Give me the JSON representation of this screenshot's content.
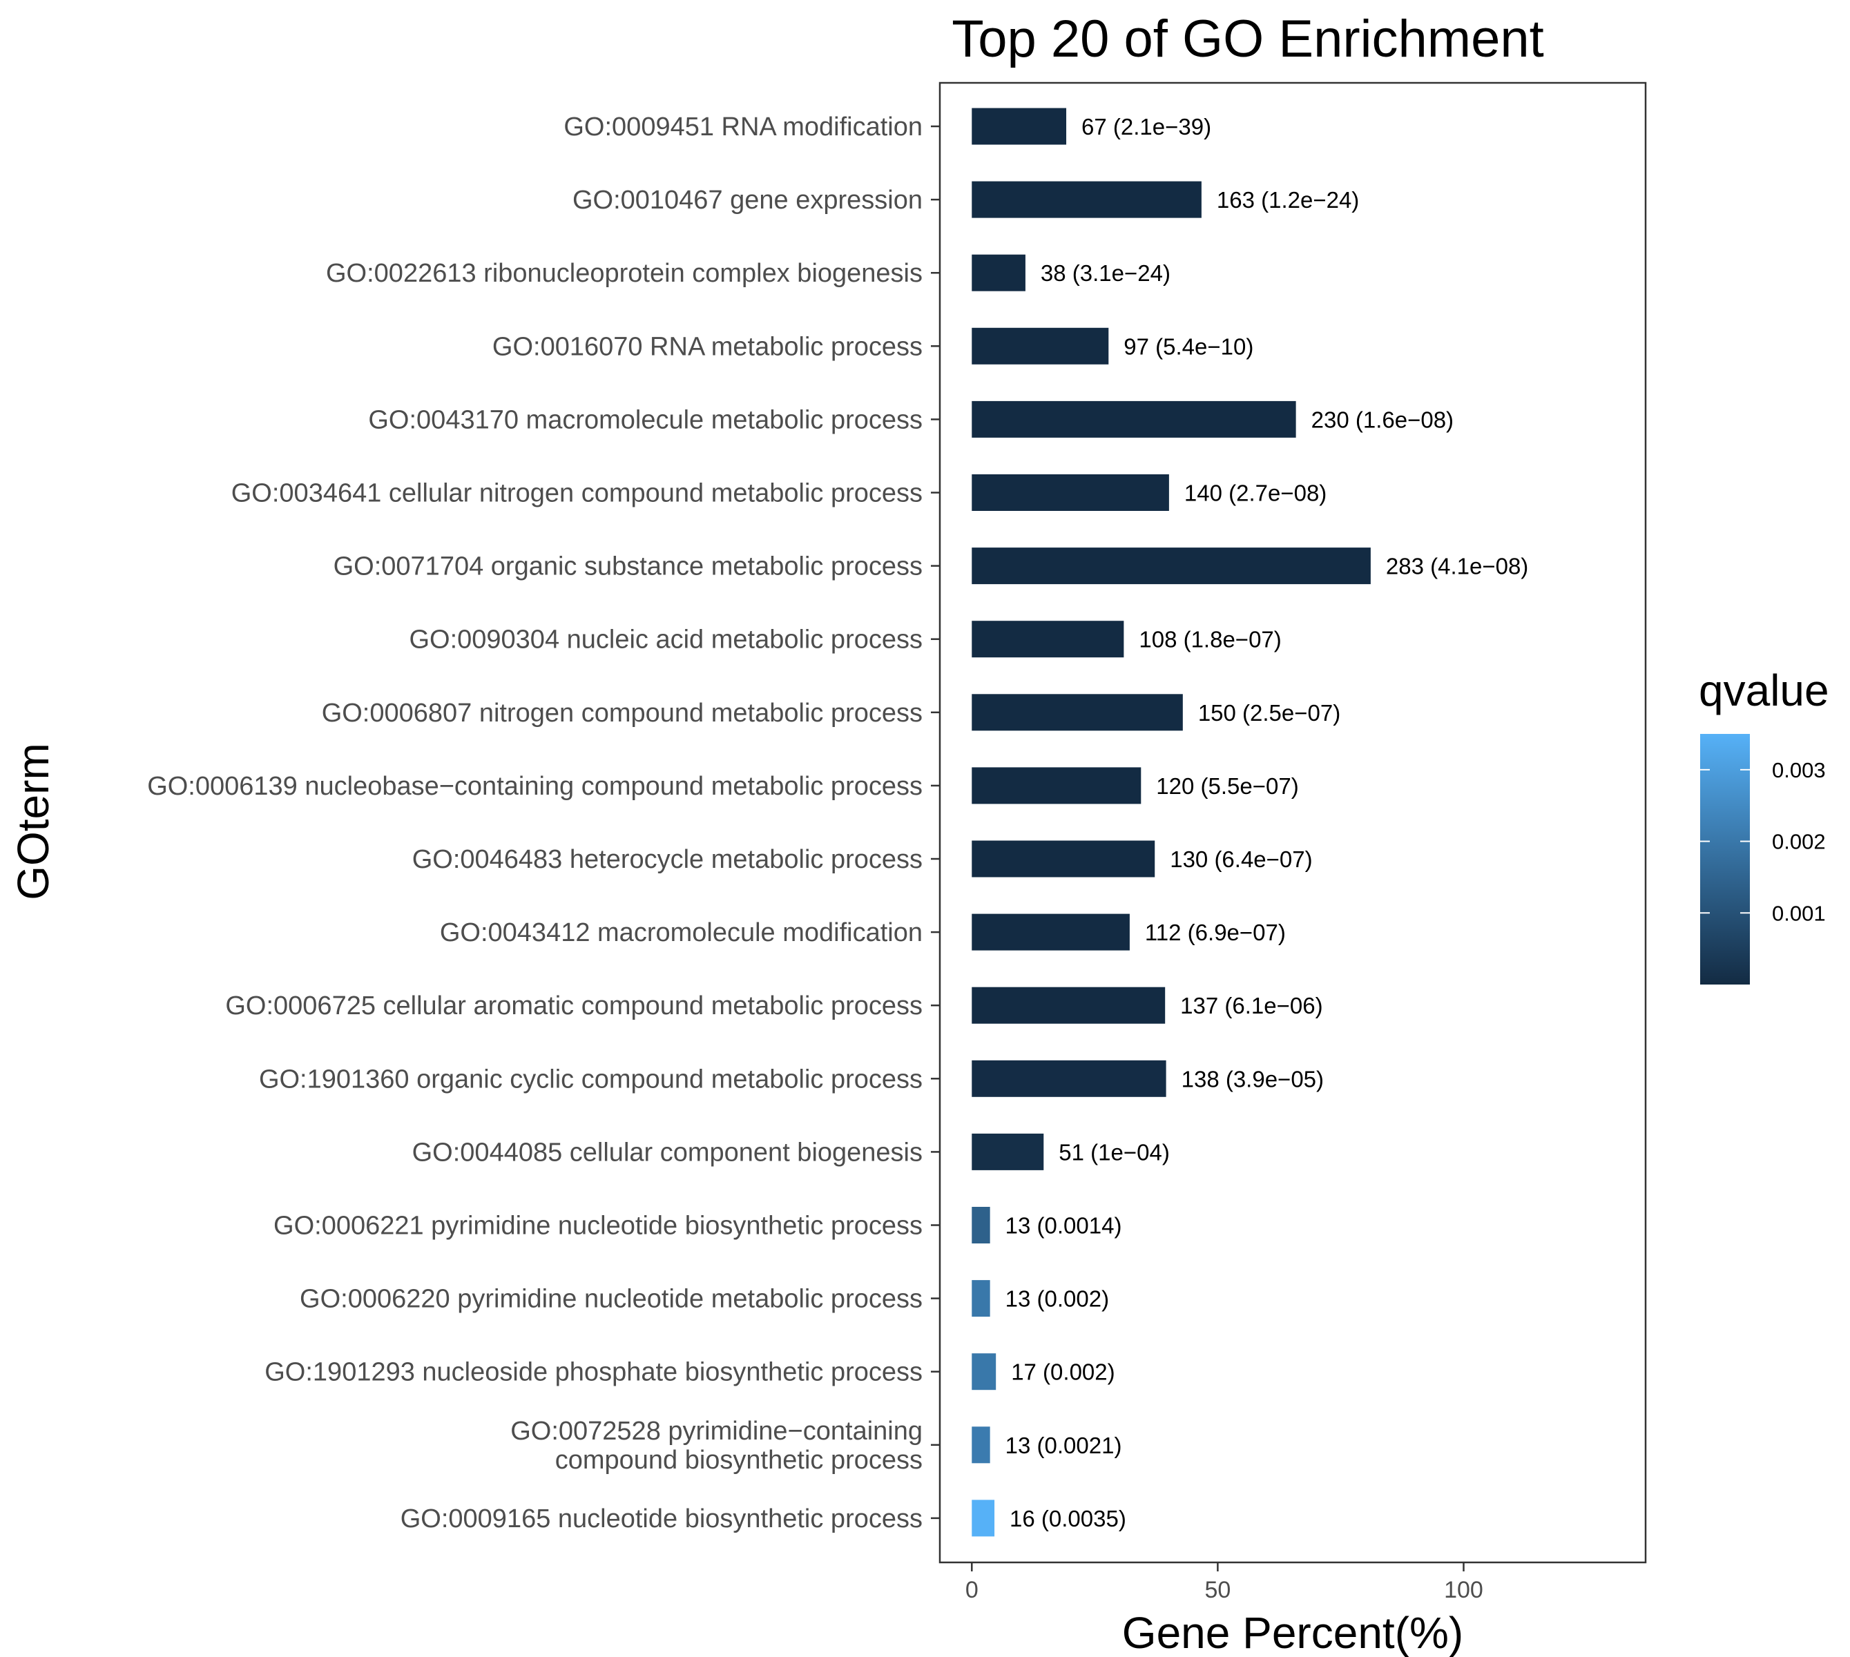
{
  "chart_data": {
    "type": "bar",
    "orientation": "horizontal",
    "title": "Top 20 of GO Enrichment",
    "xlabel": "Gene Percent(%)",
    "ylabel": "GOterm",
    "xlim": [
      -6.5,
      137
    ],
    "xticks": [
      "0",
      "50",
      "100"
    ],
    "xtick_values": [
      0,
      50,
      100
    ],
    "grid": false,
    "legend": {
      "title": "qvalue",
      "placement": "right",
      "type": "colorbar",
      "ticks": [
        "0.001",
        "0.002",
        "0.003"
      ],
      "tick_values": [
        0.001,
        0.002,
        0.003
      ],
      "range": [
        0.0,
        0.0035
      ],
      "color_low": "#132B43",
      "color_high": "#56B1F7"
    },
    "categories": [
      [
        "GO:0009451 RNA modification"
      ],
      [
        "GO:0010467 gene expression"
      ],
      [
        "GO:0022613 ribonucleoprotein complex biogenesis"
      ],
      [
        "GO:0016070 RNA metabolic process"
      ],
      [
        "GO:0043170 macromolecule metabolic process"
      ],
      [
        "GO:0034641 cellular nitrogen compound metabolic process"
      ],
      [
        "GO:0071704 organic substance metabolic process"
      ],
      [
        "GO:0090304 nucleic acid metabolic process"
      ],
      [
        "GO:0006807 nitrogen compound metabolic process"
      ],
      [
        "GO:0006139 nucleobase−containing compound metabolic process"
      ],
      [
        "GO:0046483 heterocycle metabolic process"
      ],
      [
        "GO:0043412 macromolecule modification"
      ],
      [
        "GO:0006725 cellular aromatic compound metabolic process"
      ],
      [
        "GO:1901360 organic cyclic compound metabolic process"
      ],
      [
        "GO:0044085 cellular component biogenesis"
      ],
      [
        "GO:0006221 pyrimidine nucleotide biosynthetic process"
      ],
      [
        "GO:0006220 pyrimidine nucleotide metabolic process"
      ],
      [
        "GO:1901293 nucleoside phosphate biosynthetic process"
      ],
      [
        "GO:0072528 pyrimidine−containing",
        "compound biosynthetic process"
      ],
      [
        "GO:0009165 nucleotide biosynthetic process"
      ]
    ],
    "values": [
      19.2,
      46.7,
      10.9,
      27.8,
      65.9,
      40.1,
      81.1,
      30.9,
      42.9,
      34.4,
      37.2,
      32.1,
      39.3,
      39.5,
      14.6,
      3.7,
      3.7,
      4.9,
      3.7,
      4.6
    ],
    "qvalues": [
      2.1e-39,
      1.2e-24,
      3.1e-24,
      5.4e-10,
      1.6e-08,
      2.7e-08,
      4.1e-08,
      1.8e-07,
      2.5e-07,
      5.5e-07,
      6.4e-07,
      6.9e-07,
      6.1e-06,
      3.9e-05,
      0.0001,
      0.0014,
      0.002,
      0.002,
      0.0021,
      0.0035
    ],
    "labels": [
      "67 (2.1e−39)",
      "163 (1.2e−24)",
      "38 (3.1e−24)",
      "97 (5.4e−10)",
      "230 (1.6e−08)",
      "140 (2.7e−08)",
      "283 (4.1e−08)",
      "108 (1.8e−07)",
      "150 (2.5e−07)",
      "120 (5.5e−07)",
      "130 (6.4e−07)",
      "112 (6.9e−07)",
      "137 (6.1e−06)",
      "138 (3.9e−05)",
      "51 (1e−04)",
      "13 (0.0014)",
      "13 (0.002)",
      "17 (0.002)",
      "13 (0.0021)",
      "16 (0.0035)"
    ]
  }
}
